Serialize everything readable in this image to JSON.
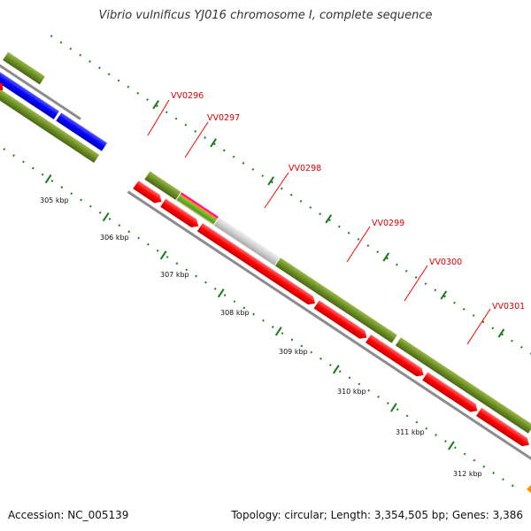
{
  "title": "Vibrio vulnificus YJ016 chromosome I, complete sequence",
  "footer": {
    "accession": "Accession: NC_005139",
    "summary": "Topology: circular; Length: 3,354,505 bp; Genes: 3,386"
  },
  "colors": {
    "forward_gene": "#6b8e23",
    "reverse_gene": "#ff0000",
    "blue_gene": "#0000ff",
    "gray_gene": "#c8c8c8",
    "backbone": "#8c8c8c",
    "tick": "#1a7a1a",
    "label": "#e00000"
  },
  "genes": [
    {
      "name": "VV0296"
    },
    {
      "name": "VV0297"
    },
    {
      "name": "VV0298"
    },
    {
      "name": "VV0299"
    },
    {
      "name": "VV0300"
    },
    {
      "name": "VV0301"
    }
  ],
  "ticks": [
    {
      "label": "305 kbp"
    },
    {
      "label": "306 kbp"
    },
    {
      "label": "307 kbp"
    },
    {
      "label": "308 kbp"
    },
    {
      "label": "309 kbp"
    },
    {
      "label": "310 kbp"
    },
    {
      "label": "311 kbp"
    },
    {
      "label": "312 kbp"
    }
  ]
}
